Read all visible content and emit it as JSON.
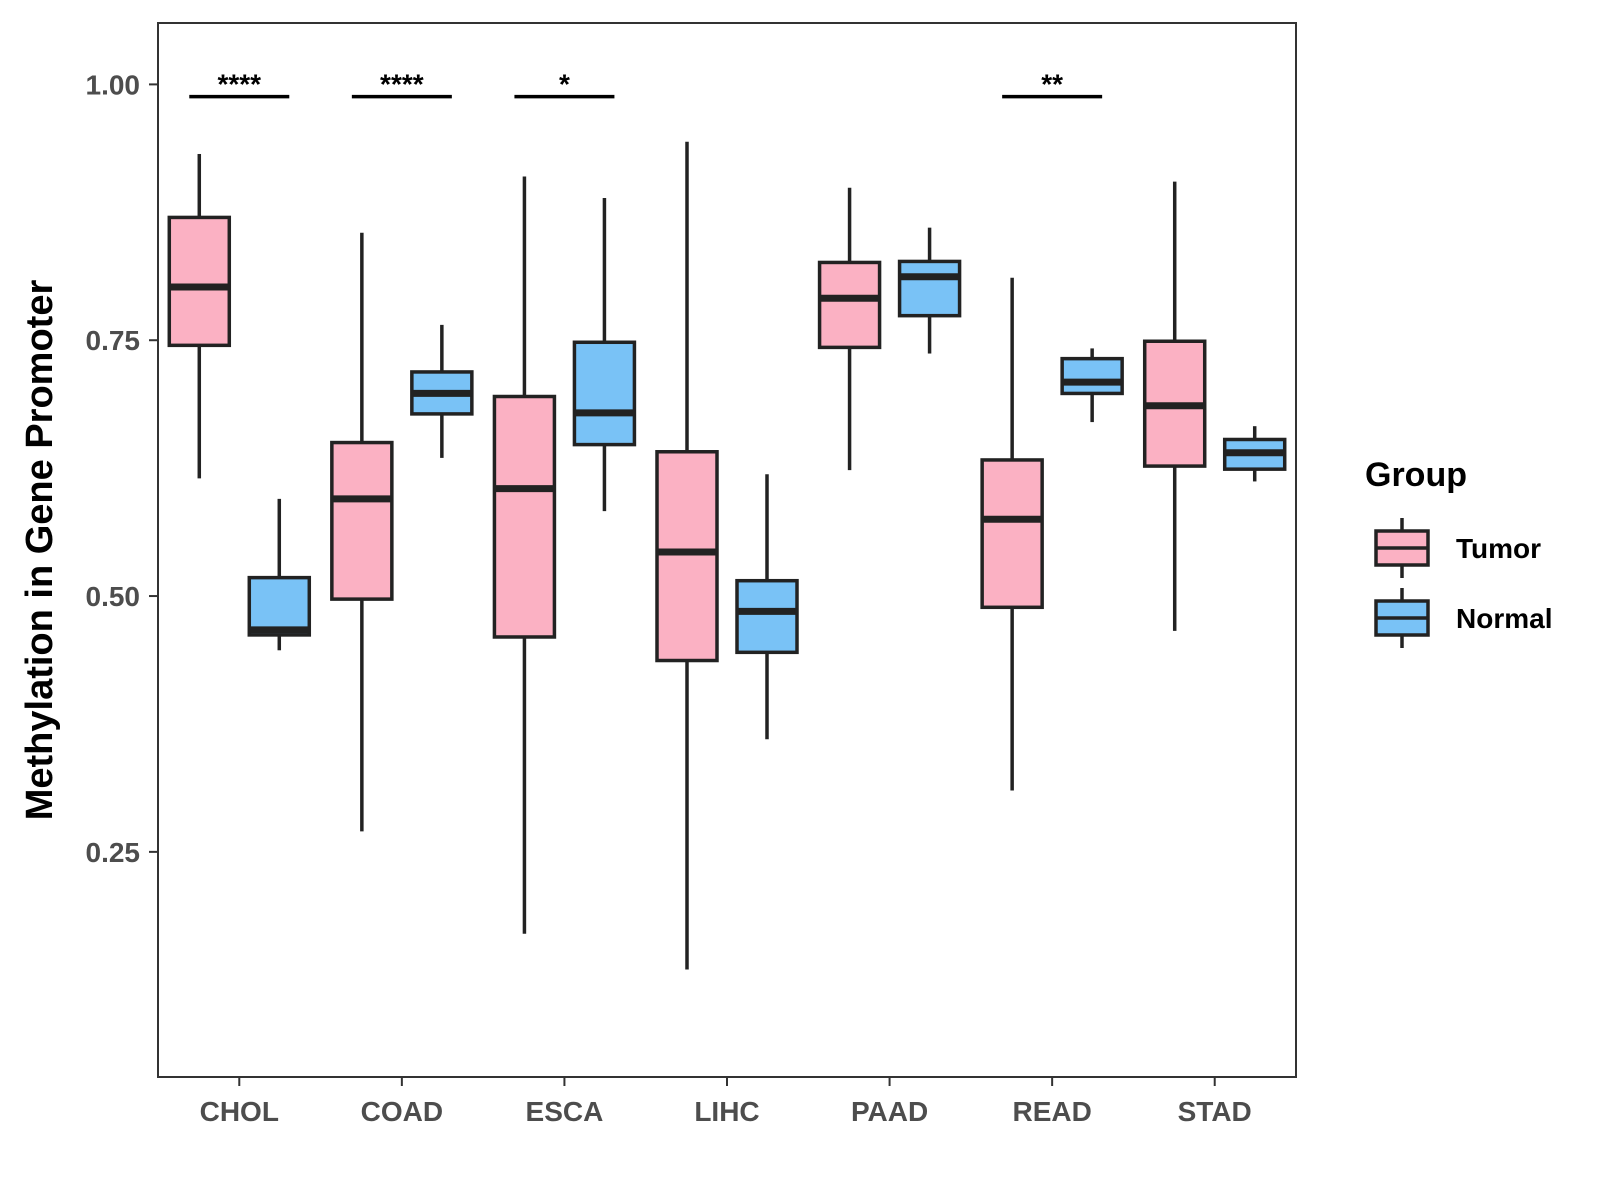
{
  "chart_data": {
    "type": "boxplot",
    "ylabel": "Methylation in Gene Promoter",
    "xlabel": "",
    "ylim": [
      0.03,
      1.06
    ],
    "yticks": [
      0.25,
      0.5,
      0.75,
      1.0
    ],
    "ytick_labels": [
      "0.25",
      "0.50",
      "0.75",
      "1.00"
    ],
    "categories": [
      "CHOL",
      "COAD",
      "ESCA",
      "LIHC",
      "PAAD",
      "READ",
      "STAD"
    ],
    "grid": false,
    "legend": {
      "title": "Group",
      "position": "right",
      "items": [
        {
          "name": "Tumor",
          "color": "#FBB1C3"
        },
        {
          "name": "Normal",
          "color": "#79C2F6"
        }
      ]
    },
    "series": [
      {
        "name": "Tumor",
        "color": "#FBB1C3",
        "boxes": [
          {
            "category": "CHOL",
            "min": 0.615,
            "q1": 0.745,
            "median": 0.802,
            "q3": 0.87,
            "max": 0.932
          },
          {
            "category": "COAD",
            "min": 0.27,
            "q1": 0.497,
            "median": 0.595,
            "q3": 0.65,
            "max": 0.855
          },
          {
            "category": "ESCA",
            "min": 0.17,
            "q1": 0.46,
            "median": 0.605,
            "q3": 0.695,
            "max": 0.91
          },
          {
            "category": "LIHC",
            "min": 0.135,
            "q1": 0.437,
            "median": 0.543,
            "q3": 0.641,
            "max": 0.944
          },
          {
            "category": "PAAD",
            "min": 0.623,
            "q1": 0.743,
            "median": 0.791,
            "q3": 0.826,
            "max": 0.899
          },
          {
            "category": "READ",
            "min": 0.31,
            "q1": 0.489,
            "median": 0.575,
            "q3": 0.633,
            "max": 0.811
          },
          {
            "category": "STAD",
            "min": 0.466,
            "q1": 0.627,
            "median": 0.686,
            "q3": 0.749,
            "max": 0.905
          }
        ]
      },
      {
        "name": "Normal",
        "color": "#79C2F6",
        "boxes": [
          {
            "category": "CHOL",
            "min": 0.447,
            "q1": 0.462,
            "median": 0.467,
            "q3": 0.518,
            "max": 0.595
          },
          {
            "category": "COAD",
            "min": 0.635,
            "q1": 0.678,
            "median": 0.698,
            "q3": 0.719,
            "max": 0.765
          },
          {
            "category": "ESCA",
            "min": 0.583,
            "q1": 0.648,
            "median": 0.679,
            "q3": 0.748,
            "max": 0.889
          },
          {
            "category": "LIHC",
            "min": 0.36,
            "q1": 0.445,
            "median": 0.485,
            "q3": 0.515,
            "max": 0.619
          },
          {
            "category": "PAAD",
            "min": 0.737,
            "q1": 0.774,
            "median": 0.812,
            "q3": 0.827,
            "max": 0.86
          },
          {
            "category": "READ",
            "min": 0.67,
            "q1": 0.698,
            "median": 0.709,
            "q3": 0.732,
            "max": 0.742
          },
          {
            "category": "STAD",
            "min": 0.612,
            "q1": 0.624,
            "median": 0.64,
            "q3": 0.653,
            "max": 0.666
          }
        ]
      }
    ],
    "significance": [
      {
        "category": "CHOL",
        "label": "****"
      },
      {
        "category": "COAD",
        "label": "****"
      },
      {
        "category": "ESCA",
        "label": "*"
      },
      {
        "category": "READ",
        "label": "**"
      }
    ]
  }
}
